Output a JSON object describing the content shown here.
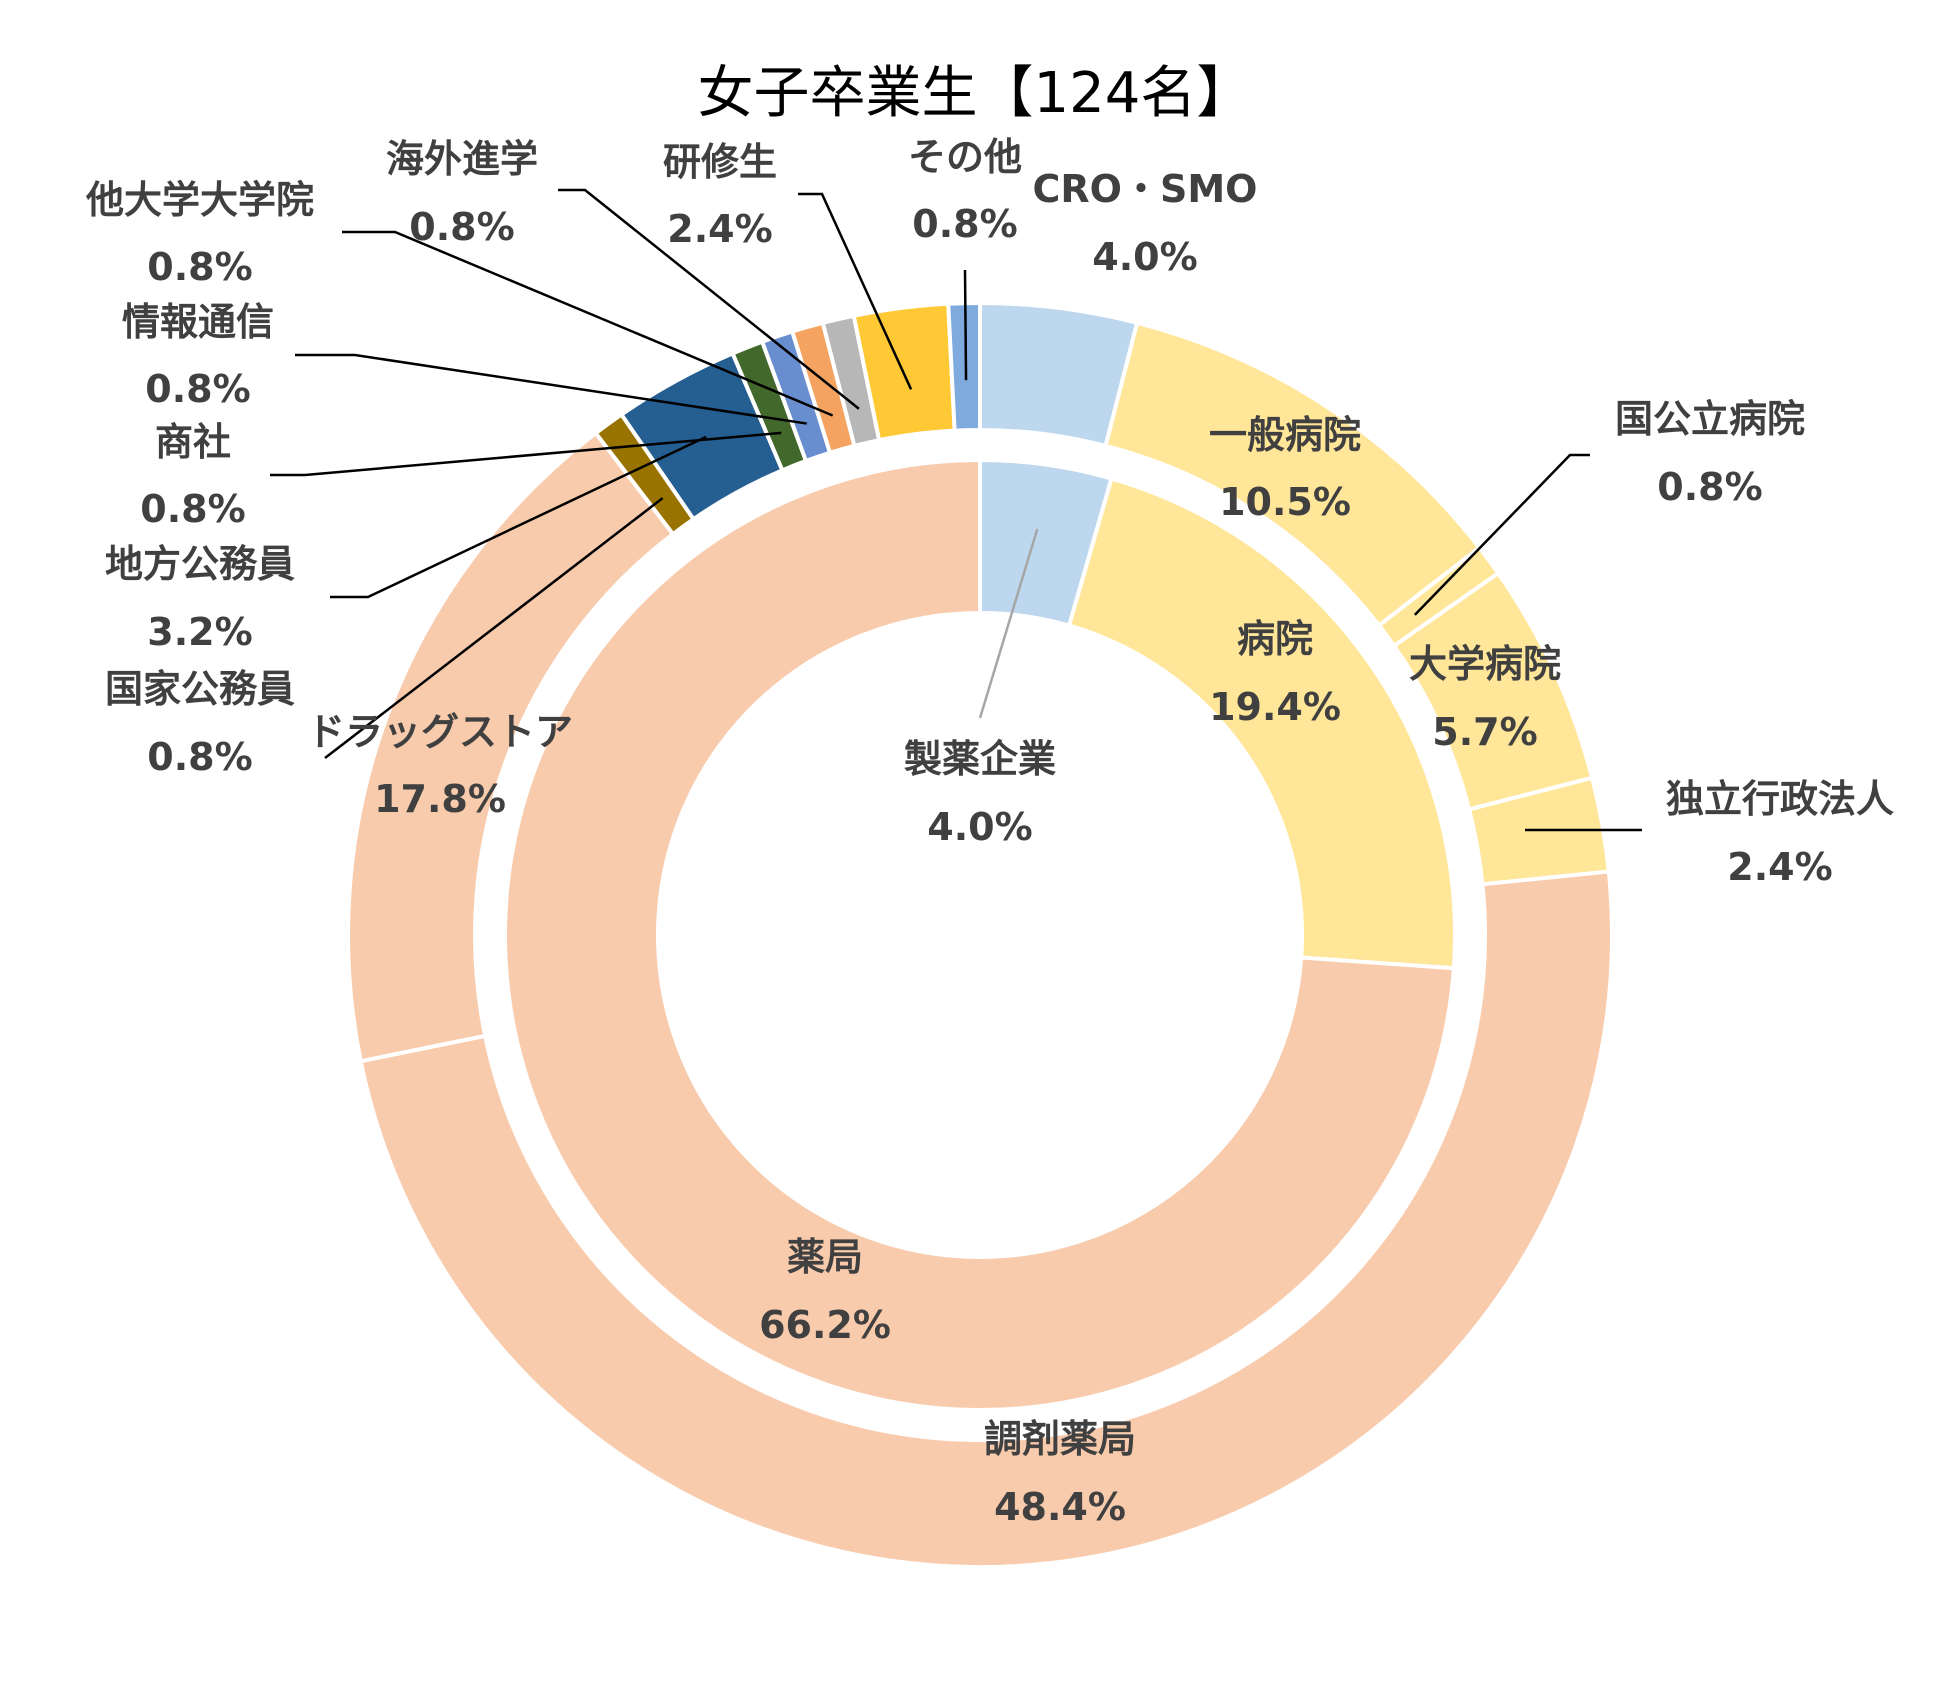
{
  "chart_data": {
    "type": "donut",
    "title": "女子卒業生【124名】",
    "inner_ring": [
      {
        "name": "製薬企業",
        "value": 4.0,
        "label": "4.0%",
        "color": "#bdd7ee"
      },
      {
        "name": "病院",
        "value": 19.4,
        "label": "19.4%",
        "color": "#ffe699"
      },
      {
        "name": "薬局",
        "value": 66.2,
        "label": "66.2%",
        "color": "#f8cbad"
      }
    ],
    "outer_ring": [
      {
        "name": "CRO・SMO",
        "value": 4.0,
        "label": "4.0%",
        "color": "#bdd7ee"
      },
      {
        "name": "一般病院",
        "value": 10.5,
        "label": "10.5%",
        "color": "#ffe699"
      },
      {
        "name": "国公立病院",
        "value": 0.8,
        "label": "0.8%",
        "color": "#ffe699"
      },
      {
        "name": "大学病院",
        "value": 5.7,
        "label": "5.7%",
        "color": "#ffe699"
      },
      {
        "name": "独立行政法人",
        "value": 2.4,
        "label": "2.4%",
        "color": "#ffe699"
      },
      {
        "name": "調剤薬局",
        "value": 48.4,
        "label": "48.4%",
        "color": "#f8cbad"
      },
      {
        "name": "ドラッグストア",
        "value": 17.8,
        "label": "17.8%",
        "color": "#f8cbad"
      },
      {
        "name": "国家公務員",
        "value": 0.8,
        "label": "0.8%",
        "color": "#997300"
      },
      {
        "name": "地方公務員",
        "value": 3.2,
        "label": "3.2%",
        "color": "#255e91"
      },
      {
        "name": "商社",
        "value": 0.8,
        "label": "0.8%",
        "color": "#43682b"
      },
      {
        "name": "情報通信",
        "value": 0.8,
        "label": "0.8%",
        "color": "#698ed0"
      },
      {
        "name": "他大学大学院",
        "value": 0.8,
        "label": "0.8%",
        "color": "#f4a460"
      },
      {
        "name": "海外進学",
        "value": 0.8,
        "label": "0.8%",
        "color": "#b7b7b7"
      },
      {
        "name": "研修生",
        "value": 2.4,
        "label": "2.4%",
        "color": "#ffc935"
      },
      {
        "name": "その他",
        "value": 0.8,
        "label": "0.8%",
        "color": "#7eaadd"
      }
    ]
  }
}
